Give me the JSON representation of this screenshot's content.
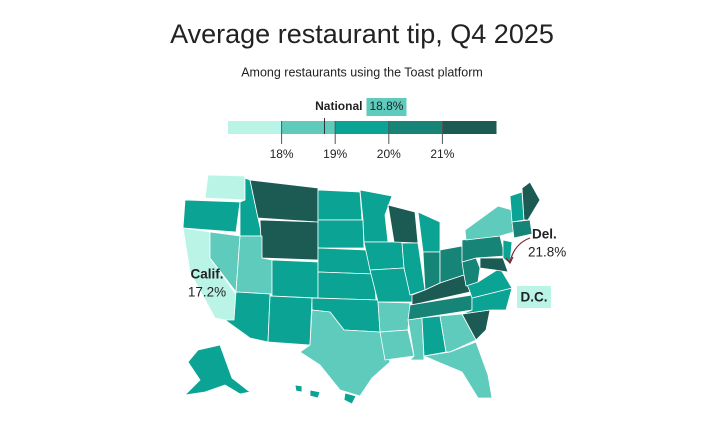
{
  "title": "Average restaurant tip, Q4 2025",
  "subtitle": "Among restaurants using the Toast platform",
  "legend": {
    "colors": [
      "#b9f4e7",
      "#5ecbbd",
      "#0ba494",
      "#168476",
      "#1c5a54"
    ],
    "xlim": [
      17,
      22
    ],
    "ticks": [
      {
        "value": 18,
        "label": "18%"
      },
      {
        "value": 19,
        "label": "19%"
      },
      {
        "value": 20,
        "label": "20%"
      },
      {
        "value": 21,
        "label": "21%"
      }
    ],
    "national": {
      "label": "National",
      "value": 18.8,
      "value_label": "18.8%"
    }
  },
  "annotations": [
    {
      "label": "Calif.",
      "value": 17.2,
      "value_label": "17.2%"
    },
    {
      "label": "Del.",
      "value": 21.8,
      "value_label": "21.8%"
    },
    {
      "label": "D.C."
    }
  ]
}
